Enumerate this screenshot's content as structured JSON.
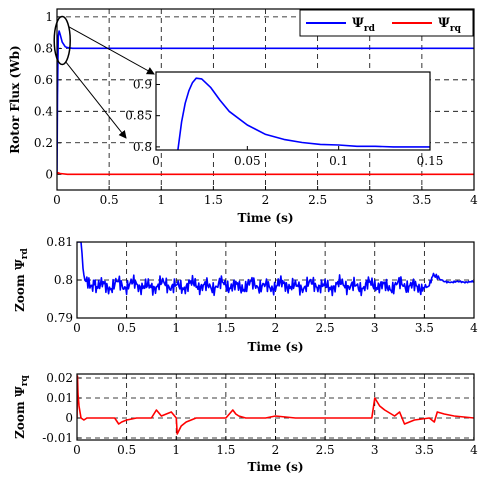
{
  "colors": {
    "series_rd": "#0000ff",
    "series_rq": "#ff0000",
    "grid": "#000000",
    "axis": "#000000"
  },
  "chart_data": [
    {
      "id": "main",
      "type": "line",
      "xlabel": "Time (s)",
      "ylabel": "Rotor Flux (Wb)",
      "xlim": [
        0,
        4
      ],
      "ylim": [
        -0.1,
        1.05
      ],
      "xticks": [
        "0",
        "0.5",
        "1",
        "1.5",
        "2",
        "2.5",
        "3",
        "3.5",
        "4"
      ],
      "yticks": [
        "0",
        "0.2",
        "0.4",
        "0.6",
        "0.8",
        "1"
      ],
      "grid": true,
      "legend_position": "top-right",
      "legend": [
        {
          "symbol": "Ψ",
          "subscript": "rd",
          "color": "#0000ff"
        },
        {
          "symbol": "Ψ",
          "subscript": "rq",
          "color": "#ff0000"
        }
      ],
      "series": [
        {
          "key": "rd",
          "color": "#0000ff",
          "x": [
            0,
            0.005,
            0.012,
            0.02,
            0.03,
            0.05,
            0.08,
            0.1,
            0.15,
            0.3,
            1,
            2,
            3,
            3.6,
            4
          ],
          "y": [
            0,
            0.5,
            0.88,
            0.91,
            0.89,
            0.84,
            0.81,
            0.805,
            0.8,
            0.8,
            0.8,
            0.8,
            0.8,
            0.8,
            0.8
          ]
        },
        {
          "key": "rq",
          "color": "#ff0000",
          "x": [
            0,
            0.01,
            0.03,
            0.1,
            1,
            2,
            3,
            4
          ],
          "y": [
            0,
            0.01,
            0.005,
            0,
            0,
            0,
            0,
            0
          ]
        }
      ]
    },
    {
      "id": "inset",
      "type": "line",
      "xlim": [
        0,
        0.15
      ],
      "ylim": [
        0.795,
        0.92
      ],
      "xticks": [
        "0",
        "0.05",
        "0.1",
        "0.15"
      ],
      "yticks": [
        "0.8",
        "0.85",
        "0.9"
      ],
      "series": [
        {
          "key": "rd",
          "color": "#0000ff",
          "x": [
            0.012,
            0.014,
            0.016,
            0.018,
            0.02,
            0.022,
            0.025,
            0.03,
            0.035,
            0.04,
            0.05,
            0.06,
            0.07,
            0.08,
            0.09,
            0.1,
            0.11,
            0.12,
            0.13,
            0.14,
            0.15
          ],
          "y": [
            0.795,
            0.84,
            0.87,
            0.89,
            0.903,
            0.91,
            0.909,
            0.895,
            0.875,
            0.857,
            0.835,
            0.82,
            0.812,
            0.807,
            0.804,
            0.803,
            0.801,
            0.801,
            0.8,
            0.8,
            0.8
          ]
        }
      ]
    },
    {
      "id": "zoom_rd",
      "type": "line",
      "xlabel": "Time (s)",
      "ylabel": {
        "prefix": "Zoom ",
        "symbol": "Ψ",
        "subscript": "rd"
      },
      "xlim": [
        0,
        4
      ],
      "ylim": [
        0.79,
        0.81
      ],
      "xticks": [
        "0",
        "0.5",
        "1",
        "1.5",
        "2",
        "2.5",
        "3",
        "3.5",
        "4"
      ],
      "yticks": [
        "0.79",
        "0.8",
        "0.81"
      ],
      "grid": true,
      "series": [
        {
          "key": "rd",
          "color": "#0000ff",
          "x": [
            0,
            0.02,
            0.04,
            0.07,
            0.1,
            0.15,
            0.2,
            0.3,
            0.4,
            0.5,
            0.6,
            0.7,
            0.8,
            0.9,
            1,
            1.1,
            1.2,
            1.3,
            1.4,
            1.5,
            1.6,
            1.7,
            1.8,
            1.9,
            2,
            2.1,
            2.2,
            2.3,
            2.4,
            2.5,
            2.6,
            2.7,
            2.8,
            2.9,
            3,
            3.1,
            3.2,
            3.3,
            3.4,
            3.5,
            3.55,
            3.6,
            3.65,
            3.7,
            3.8,
            3.9,
            4
          ],
          "y": [
            0.81,
            0.81,
            0.81,
            0.8,
            0.799,
            0.798,
            0.799,
            0.798,
            0.799,
            0.7985,
            0.799,
            0.798,
            0.7985,
            0.799,
            0.798,
            0.7985,
            0.799,
            0.798,
            0.7985,
            0.799,
            0.798,
            0.7985,
            0.799,
            0.798,
            0.7985,
            0.799,
            0.798,
            0.7985,
            0.799,
            0.798,
            0.7985,
            0.799,
            0.798,
            0.7985,
            0.799,
            0.798,
            0.7985,
            0.799,
            0.798,
            0.7985,
            0.799,
            0.8015,
            0.8005,
            0.7995,
            0.7995,
            0.7995,
            0.7995
          ],
          "amplitude": [
            0,
            0,
            0,
            0.0015,
            0.002,
            0.0025,
            0.0025,
            0.0025,
            0.0025,
            0.0025,
            0.0025,
            0.0025,
            0.0025,
            0.0025,
            0.0025,
            0.0025,
            0.0025,
            0.0025,
            0.0025,
            0.0025,
            0.0025,
            0.0025,
            0.0025,
            0.0025,
            0.0025,
            0.0025,
            0.0025,
            0.0025,
            0.0025,
            0.0025,
            0.0025,
            0.0025,
            0.0025,
            0.0025,
            0.0025,
            0.0025,
            0.0025,
            0.0025,
            0.0025,
            0.0025,
            0.002,
            0.001,
            0.0005,
            0.0003,
            0.0003,
            0.0003,
            0.0003
          ]
        }
      ]
    },
    {
      "id": "zoom_rq",
      "type": "line",
      "xlabel": "Time (s)",
      "ylabel": {
        "prefix": "Zoom ",
        "symbol": "Ψ",
        "subscript": "rq"
      },
      "xlim": [
        0,
        4
      ],
      "ylim": [
        -0.011,
        0.022
      ],
      "xticks": [
        "0",
        "0.5",
        "1",
        "1.5",
        "2",
        "2.5",
        "3",
        "3.5",
        "4"
      ],
      "yticks": [
        "0.02",
        "0.01",
        "0",
        "-0.01"
      ],
      "grid": true,
      "series": [
        {
          "key": "rq",
          "color": "#ff0000",
          "x": [
            0,
            0.005,
            0.01,
            0.02,
            0.04,
            0.07,
            0.1,
            0.2,
            0.3,
            0.38,
            0.42,
            0.45,
            0.5,
            0.6,
            0.75,
            0.8,
            0.85,
            0.9,
            0.95,
            1.0,
            1.01,
            1.05,
            1.1,
            1.2,
            1.3,
            1.5,
            1.57,
            1.6,
            1.63,
            1.7,
            1.9,
            2.0,
            2.2,
            2.5,
            2.8,
            2.97,
            3.0,
            3.05,
            3.1,
            3.2,
            3.25,
            3.3,
            3.4,
            3.55,
            3.6,
            3.63,
            3.7,
            3.8,
            4.0
          ],
          "y": [
            0,
            0.021,
            0.012,
            0.006,
            0.0,
            -0.001,
            0,
            0,
            0,
            0.0,
            -0.003,
            -0.002,
            -0.001,
            0,
            0,
            0.004,
            0.001,
            0.002,
            0.003,
            0.0,
            -0.008,
            -0.004,
            -0.002,
            0,
            0,
            0,
            0.004,
            0.002,
            0.001,
            0,
            0,
            0.001,
            0,
            0,
            0,
            0.0,
            0.01,
            0.006,
            0.004,
            0.001,
            0.003,
            -0.003,
            -0.001,
            0,
            -0.002,
            0.003,
            0.002,
            0.001,
            0
          ]
        }
      ]
    }
  ]
}
